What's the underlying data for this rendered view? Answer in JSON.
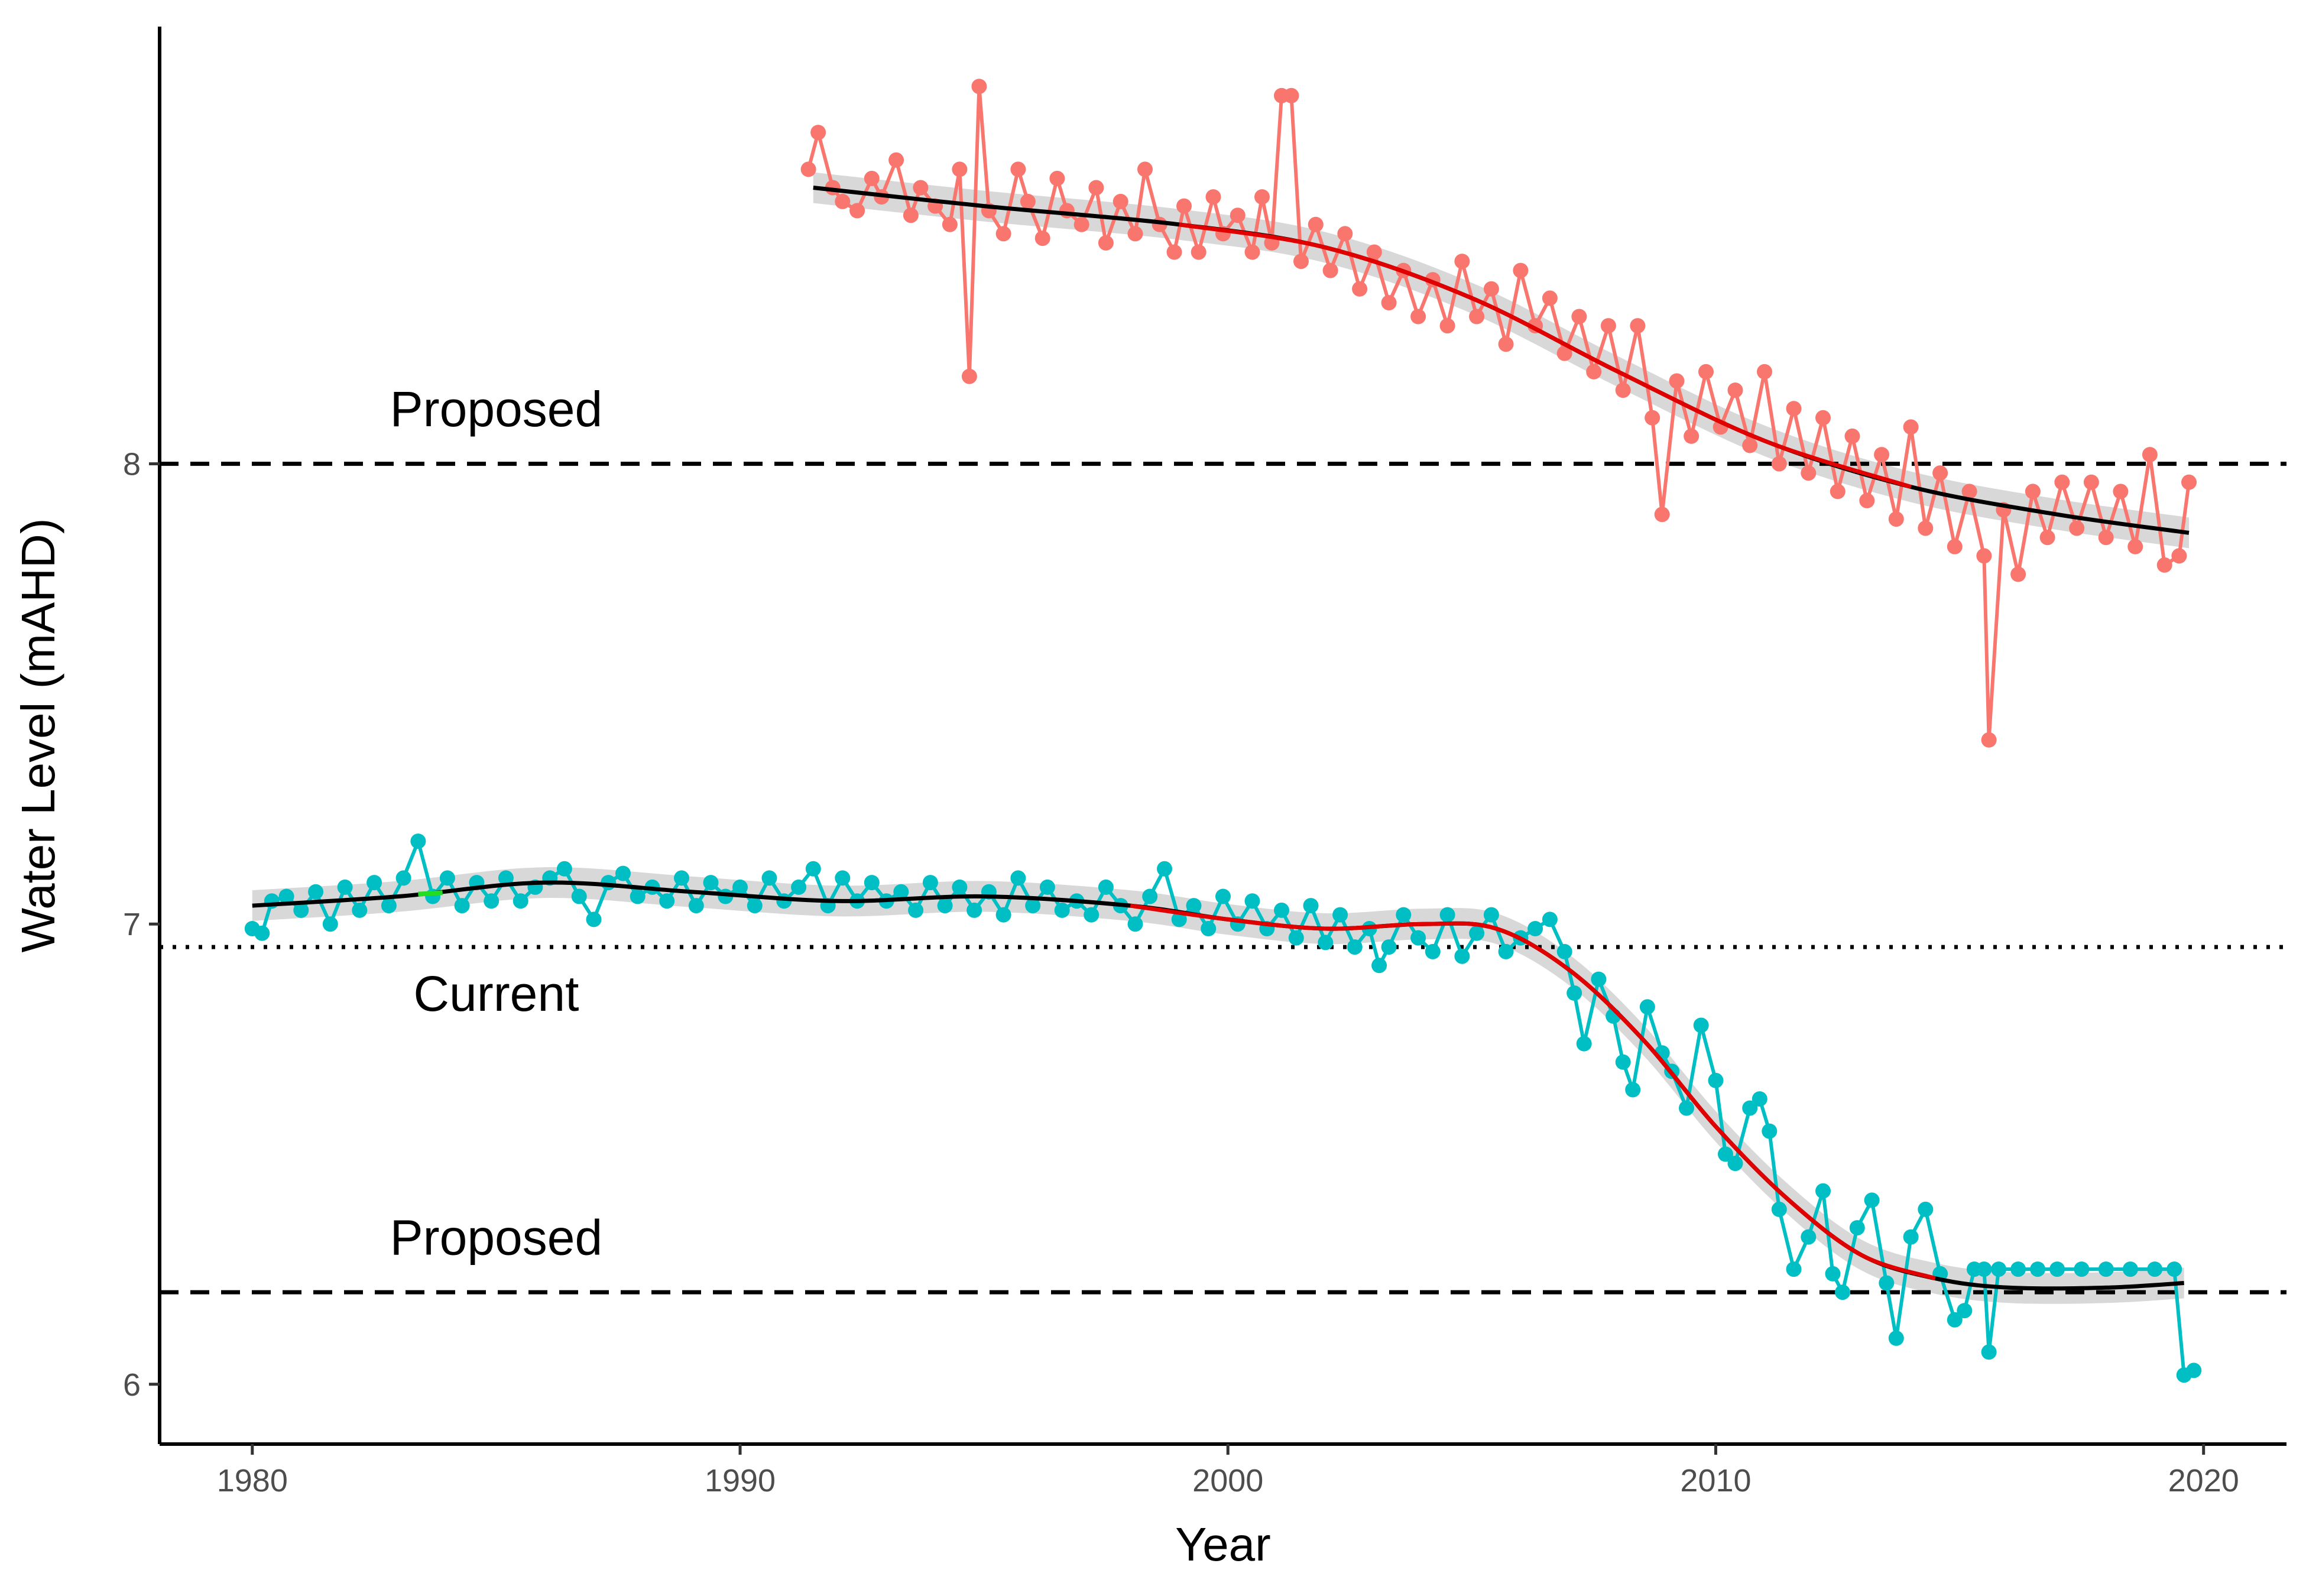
{
  "chart_data": {
    "type": "line",
    "xlabel": "Year",
    "ylabel": "Water Level (mAHD)",
    "xlim": [
      1978.1,
      2021.7
    ],
    "ylim": [
      5.87,
      8.95
    ],
    "x_ticks": [
      1980,
      1990,
      2000,
      2010,
      2020
    ],
    "y_ticks": [
      6,
      7,
      8
    ],
    "grid": false,
    "legend": "none",
    "colors": {
      "upper_series": "#F8766D",
      "lower_series": "#00BFC4",
      "trend": "#000000",
      "trend_highlight": "#E00000",
      "trend_green": "#22DD22",
      "ribbon": "#BEBEBE"
    },
    "reference_lines": [
      {
        "label": "Proposed",
        "y": 8.0,
        "style": "dashed",
        "label_x": 1985.0,
        "label_y": 8.12
      },
      {
        "label": "Current",
        "y": 6.95,
        "style": "dotted",
        "label_x": 1985.0,
        "label_y": 6.85
      },
      {
        "label": "Proposed",
        "y": 6.2,
        "style": "dashed",
        "label_x": 1985.0,
        "label_y": 6.32
      }
    ],
    "series": [
      {
        "points": [
          [
            1991.4,
            8.64
          ],
          [
            1991.6,
            8.72
          ],
          [
            1991.9,
            8.6
          ],
          [
            1992.1,
            8.57
          ],
          [
            1992.4,
            8.55
          ],
          [
            1992.7,
            8.62
          ],
          [
            1992.9,
            8.58
          ],
          [
            1993.2,
            8.66
          ],
          [
            1993.5,
            8.54
          ],
          [
            1993.7,
            8.6
          ],
          [
            1994.0,
            8.56
          ],
          [
            1994.3,
            8.52
          ],
          [
            1994.5,
            8.64
          ],
          [
            1994.7,
            8.19
          ],
          [
            1994.9,
            8.82
          ],
          [
            1995.1,
            8.55
          ],
          [
            1995.4,
            8.5
          ],
          [
            1995.7,
            8.64
          ],
          [
            1995.9,
            8.57
          ],
          [
            1996.2,
            8.49
          ],
          [
            1996.5,
            8.62
          ],
          [
            1996.7,
            8.55
          ],
          [
            1997.0,
            8.52
          ],
          [
            1997.3,
            8.6
          ],
          [
            1997.5,
            8.48
          ],
          [
            1997.8,
            8.57
          ],
          [
            1998.1,
            8.5
          ],
          [
            1998.3,
            8.64
          ],
          [
            1998.6,
            8.52
          ],
          [
            1998.9,
            8.46
          ],
          [
            1999.1,
            8.56
          ],
          [
            1999.4,
            8.46
          ],
          [
            1999.7,
            8.58
          ],
          [
            1999.9,
            8.5
          ],
          [
            2000.2,
            8.54
          ],
          [
            2000.5,
            8.46
          ],
          [
            2000.7,
            8.58
          ],
          [
            2000.9,
            8.48
          ],
          [
            2001.1,
            8.8
          ],
          [
            2001.3,
            8.8
          ],
          [
            2001.5,
            8.44
          ],
          [
            2001.8,
            8.52
          ],
          [
            2002.1,
            8.42
          ],
          [
            2002.4,
            8.5
          ],
          [
            2002.7,
            8.38
          ],
          [
            2003.0,
            8.46
          ],
          [
            2003.3,
            8.35
          ],
          [
            2003.6,
            8.42
          ],
          [
            2003.9,
            8.32
          ],
          [
            2004.2,
            8.4
          ],
          [
            2004.5,
            8.3
          ],
          [
            2004.8,
            8.44
          ],
          [
            2005.1,
            8.32
          ],
          [
            2005.4,
            8.38
          ],
          [
            2005.7,
            8.26
          ],
          [
            2006.0,
            8.42
          ],
          [
            2006.3,
            8.3
          ],
          [
            2006.6,
            8.36
          ],
          [
            2006.9,
            8.24
          ],
          [
            2007.2,
            8.32
          ],
          [
            2007.5,
            8.2
          ],
          [
            2007.8,
            8.3
          ],
          [
            2008.1,
            8.16
          ],
          [
            2008.4,
            8.3
          ],
          [
            2008.7,
            8.1
          ],
          [
            2008.9,
            7.89
          ],
          [
            2009.2,
            8.18
          ],
          [
            2009.5,
            8.06
          ],
          [
            2009.8,
            8.2
          ],
          [
            2010.1,
            8.08
          ],
          [
            2010.4,
            8.16
          ],
          [
            2010.7,
            8.04
          ],
          [
            2011.0,
            8.2
          ],
          [
            2011.3,
            8.0
          ],
          [
            2011.6,
            8.12
          ],
          [
            2011.9,
            7.98
          ],
          [
            2012.2,
            8.1
          ],
          [
            2012.5,
            7.94
          ],
          [
            2012.8,
            8.06
          ],
          [
            2013.1,
            7.92
          ],
          [
            2013.4,
            8.02
          ],
          [
            2013.7,
            7.88
          ],
          [
            2014.0,
            8.08
          ],
          [
            2014.3,
            7.86
          ],
          [
            2014.6,
            7.98
          ],
          [
            2014.9,
            7.82
          ],
          [
            2015.2,
            7.94
          ],
          [
            2015.5,
            7.8
          ],
          [
            2015.6,
            7.4
          ],
          [
            2015.9,
            7.9
          ],
          [
            2016.2,
            7.76
          ],
          [
            2016.5,
            7.94
          ],
          [
            2016.8,
            7.84
          ],
          [
            2017.1,
            7.96
          ],
          [
            2017.4,
            7.86
          ],
          [
            2017.7,
            7.96
          ],
          [
            2018.0,
            7.84
          ],
          [
            2018.3,
            7.94
          ],
          [
            2018.6,
            7.82
          ],
          [
            2018.9,
            8.02
          ],
          [
            2019.2,
            7.78
          ],
          [
            2019.5,
            7.8
          ],
          [
            2019.7,
            7.96
          ]
        ],
        "trend": [
          [
            1991.5,
            8.6
          ],
          [
            1995,
            8.56
          ],
          [
            1999,
            8.52
          ],
          [
            2002,
            8.47
          ],
          [
            2005,
            8.36
          ],
          [
            2008,
            8.2
          ],
          [
            2011,
            8.05
          ],
          [
            2014,
            7.95
          ],
          [
            2017,
            7.89
          ],
          [
            2019.7,
            7.85
          ]
        ]
      },
      {
        "points": [
          [
            1980.0,
            6.99
          ],
          [
            1980.2,
            6.98
          ],
          [
            1980.4,
            7.05
          ],
          [
            1980.7,
            7.06
          ],
          [
            1981.0,
            7.03
          ],
          [
            1981.3,
            7.07
          ],
          [
            1981.6,
            7.0
          ],
          [
            1981.9,
            7.08
          ],
          [
            1982.2,
            7.03
          ],
          [
            1982.5,
            7.09
          ],
          [
            1982.8,
            7.04
          ],
          [
            1983.1,
            7.1
          ],
          [
            1983.4,
            7.18
          ],
          [
            1983.7,
            7.06
          ],
          [
            1984.0,
            7.1
          ],
          [
            1984.3,
            7.04
          ],
          [
            1984.6,
            7.09
          ],
          [
            1984.9,
            7.05
          ],
          [
            1985.2,
            7.1
          ],
          [
            1985.5,
            7.05
          ],
          [
            1985.8,
            7.08
          ],
          [
            1986.1,
            7.1
          ],
          [
            1986.4,
            7.12
          ],
          [
            1986.7,
            7.06
          ],
          [
            1987.0,
            7.01
          ],
          [
            1987.3,
            7.09
          ],
          [
            1987.6,
            7.11
          ],
          [
            1987.9,
            7.06
          ],
          [
            1988.2,
            7.08
          ],
          [
            1988.5,
            7.05
          ],
          [
            1988.8,
            7.1
          ],
          [
            1989.1,
            7.04
          ],
          [
            1989.4,
            7.09
          ],
          [
            1989.7,
            7.06
          ],
          [
            1990.0,
            7.08
          ],
          [
            1990.3,
            7.04
          ],
          [
            1990.6,
            7.1
          ],
          [
            1990.9,
            7.05
          ],
          [
            1991.2,
            7.08
          ],
          [
            1991.5,
            7.12
          ],
          [
            1991.8,
            7.04
          ],
          [
            1992.1,
            7.1
          ],
          [
            1992.4,
            7.05
          ],
          [
            1992.7,
            7.09
          ],
          [
            1993.0,
            7.05
          ],
          [
            1993.3,
            7.07
          ],
          [
            1993.6,
            7.03
          ],
          [
            1993.9,
            7.09
          ],
          [
            1994.2,
            7.04
          ],
          [
            1994.5,
            7.08
          ],
          [
            1994.8,
            7.03
          ],
          [
            1995.1,
            7.07
          ],
          [
            1995.4,
            7.02
          ],
          [
            1995.7,
            7.1
          ],
          [
            1996.0,
            7.04
          ],
          [
            1996.3,
            7.08
          ],
          [
            1996.6,
            7.03
          ],
          [
            1996.9,
            7.05
          ],
          [
            1997.2,
            7.02
          ],
          [
            1997.5,
            7.08
          ],
          [
            1997.8,
            7.04
          ],
          [
            1998.1,
            7.0
          ],
          [
            1998.4,
            7.06
          ],
          [
            1998.7,
            7.12
          ],
          [
            1999.0,
            7.01
          ],
          [
            1999.3,
            7.04
          ],
          [
            1999.6,
            6.99
          ],
          [
            1999.9,
            7.06
          ],
          [
            2000.2,
            7.0
          ],
          [
            2000.5,
            7.05
          ],
          [
            2000.8,
            6.99
          ],
          [
            2001.1,
            7.03
          ],
          [
            2001.4,
            6.97
          ],
          [
            2001.7,
            7.04
          ],
          [
            2002.0,
            6.96
          ],
          [
            2002.3,
            7.02
          ],
          [
            2002.6,
            6.95
          ],
          [
            2002.9,
            6.99
          ],
          [
            2003.1,
            6.91
          ],
          [
            2003.3,
            6.95
          ],
          [
            2003.6,
            7.02
          ],
          [
            2003.9,
            6.97
          ],
          [
            2004.2,
            6.94
          ],
          [
            2004.5,
            7.02
          ],
          [
            2004.8,
            6.93
          ],
          [
            2005.1,
            6.98
          ],
          [
            2005.4,
            7.02
          ],
          [
            2005.7,
            6.94
          ],
          [
            2006.0,
            6.97
          ],
          [
            2006.3,
            6.99
          ],
          [
            2006.6,
            7.01
          ],
          [
            2006.9,
            6.94
          ],
          [
            2007.1,
            6.85
          ],
          [
            2007.3,
            6.74
          ],
          [
            2007.6,
            6.88
          ],
          [
            2007.9,
            6.8
          ],
          [
            2008.1,
            6.7
          ],
          [
            2008.3,
            6.64
          ],
          [
            2008.6,
            6.82
          ],
          [
            2008.9,
            6.72
          ],
          [
            2009.1,
            6.68
          ],
          [
            2009.4,
            6.6
          ],
          [
            2009.7,
            6.78
          ],
          [
            2010.0,
            6.66
          ],
          [
            2010.2,
            6.5
          ],
          [
            2010.4,
            6.48
          ],
          [
            2010.7,
            6.6
          ],
          [
            2010.9,
            6.62
          ],
          [
            2011.1,
            6.55
          ],
          [
            2011.3,
            6.38
          ],
          [
            2011.6,
            6.25
          ],
          [
            2011.9,
            6.32
          ],
          [
            2012.2,
            6.42
          ],
          [
            2012.4,
            6.24
          ],
          [
            2012.6,
            6.2
          ],
          [
            2012.9,
            6.34
          ],
          [
            2013.2,
            6.4
          ],
          [
            2013.5,
            6.22
          ],
          [
            2013.7,
            6.1
          ],
          [
            2014.0,
            6.32
          ],
          [
            2014.3,
            6.38
          ],
          [
            2014.6,
            6.24
          ],
          [
            2014.9,
            6.14
          ],
          [
            2015.1,
            6.16
          ],
          [
            2015.3,
            6.25
          ],
          [
            2015.5,
            6.25
          ],
          [
            2015.6,
            6.07
          ],
          [
            2015.8,
            6.25
          ],
          [
            2016.2,
            6.25
          ],
          [
            2016.6,
            6.25
          ],
          [
            2017.0,
            6.25
          ],
          [
            2017.5,
            6.25
          ],
          [
            2018.0,
            6.25
          ],
          [
            2018.5,
            6.25
          ],
          [
            2019.0,
            6.25
          ],
          [
            2019.4,
            6.25
          ],
          [
            2019.6,
            6.02
          ],
          [
            2019.8,
            6.03
          ]
        ],
        "trend": [
          [
            1980,
            7.04
          ],
          [
            1983,
            7.06
          ],
          [
            1986,
            7.09
          ],
          [
            1989,
            7.07
          ],
          [
            1992,
            7.05
          ],
          [
            1995,
            7.06
          ],
          [
            1998,
            7.04
          ],
          [
            2000,
            7.01
          ],
          [
            2002,
            6.99
          ],
          [
            2004,
            7.0
          ],
          [
            2005.5,
            6.99
          ],
          [
            2007,
            6.9
          ],
          [
            2008.5,
            6.75
          ],
          [
            2010,
            6.56
          ],
          [
            2011.5,
            6.4
          ],
          [
            2013,
            6.28
          ],
          [
            2014.5,
            6.23
          ],
          [
            2016,
            6.21
          ],
          [
            2018,
            6.21
          ],
          [
            2019.6,
            6.22
          ]
        ]
      }
    ]
  }
}
